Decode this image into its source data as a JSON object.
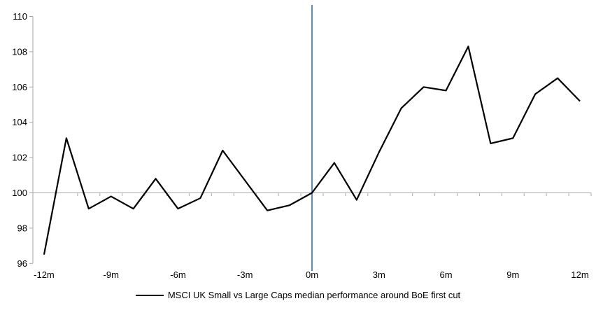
{
  "chart_data": {
    "type": "line",
    "title": "",
    "xlabel": "",
    "ylabel": "",
    "x_months": [
      -12,
      -11,
      -10,
      -9,
      -8,
      -7,
      -6,
      -5,
      -4,
      -3,
      -2,
      -1,
      0,
      1,
      2,
      3,
      4,
      5,
      6,
      7,
      8,
      9,
      10,
      11,
      12
    ],
    "x_tick_months": [
      -12,
      -9,
      -6,
      -3,
      0,
      3,
      6,
      9,
      12
    ],
    "x_tick_labels": [
      "-12m",
      "-9m",
      "-6m",
      "-3m",
      "0m",
      "3m",
      "6m",
      "9m",
      "12m"
    ],
    "y_tick_values": [
      96,
      98,
      100,
      102,
      104,
      106,
      108,
      110
    ],
    "y_tick_labels": [
      "96",
      "98",
      "100",
      "102",
      "104",
      "106",
      "108",
      "110"
    ],
    "ylim": [
      96,
      110
    ],
    "xlim_months": [
      -12.5,
      12.5
    ],
    "baseline_value": 100,
    "event_line_month": 0,
    "grid": "baseline-only",
    "legend_position": "bottom-center",
    "series": [
      {
        "name": "MSCI UK Small vs Large Caps median performance around BoE first cut",
        "color": "#000000",
        "values": [
          96.5,
          103.1,
          99.1,
          99.8,
          99.1,
          100.8,
          99.1,
          99.7,
          102.4,
          100.7,
          99.0,
          99.3,
          100.0,
          101.7,
          99.6,
          102.3,
          104.8,
          106.0,
          105.8,
          108.3,
          102.8,
          103.1,
          105.6,
          106.5,
          105.2
        ]
      }
    ],
    "colors": {
      "event_line": "#4a7ebb",
      "axis": "#a6a6a6",
      "baseline": "#ababab",
      "text": "#000000",
      "background": "#ffffff"
    }
  }
}
